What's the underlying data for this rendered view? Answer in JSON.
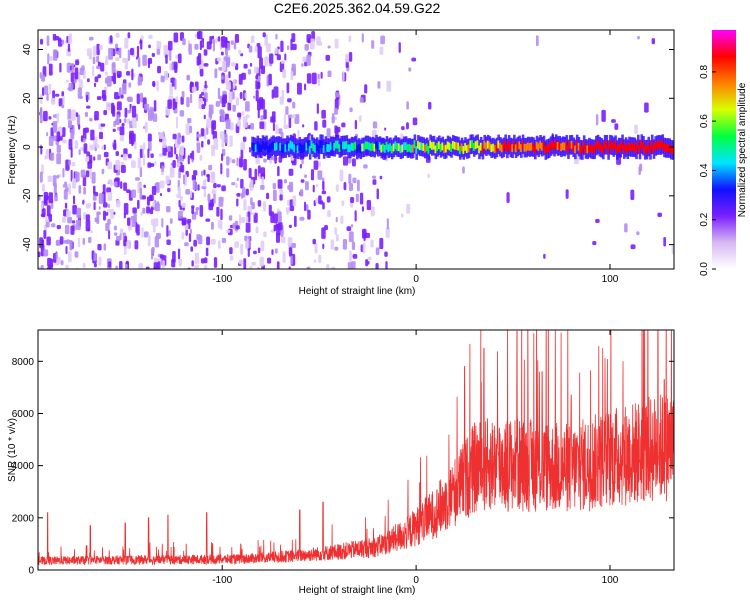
{
  "chart_data": [
    {
      "type": "heatmap",
      "title": "C2E6.2025.362.04.59.G22",
      "xlabel": "Height of straight line (km)",
      "ylabel": "Frequency (Hz)",
      "xlim": [
        -195,
        133
      ],
      "ylim": [
        -50,
        48
      ],
      "xticks": [
        -100,
        0,
        100
      ],
      "yticks": [
        -40,
        -20,
        0,
        20,
        40
      ],
      "colorbar": {
        "label": "Normalized spectral amplitude",
        "range": [
          0,
          0.97
        ],
        "ticks": [
          0.0,
          0.2,
          0.4,
          0.6,
          0.8
        ],
        "colors": [
          "#ffffff",
          "#d7b8f2",
          "#7a1fff",
          "#1010ff",
          "#00e5ff",
          "#00ff40",
          "#d8ff00",
          "#ff8000",
          "#ff0000",
          "#ff00ff"
        ]
      },
      "signal_band": {
        "x_start": -85,
        "x_end": 133,
        "center_freq_hz": 0,
        "peak_amplitude": 0.92
      }
    },
    {
      "type": "line",
      "title": "",
      "xlabel": "Height of straight line (km)",
      "ylabel": "SNR (10 * v/v)",
      "xlim": [
        -195,
        133
      ],
      "ylim": [
        0,
        9200
      ],
      "xticks": [
        -100,
        0,
        100
      ],
      "yticks": [
        0,
        2000,
        4000,
        6000,
        8000
      ],
      "color": "#ee3030",
      "trend": {
        "x": [
          -195,
          -160,
          -120,
          -90,
          -60,
          -40,
          -20,
          -5,
          10,
          20,
          30,
          40,
          60,
          80,
          100,
          120,
          133
        ],
        "y": [
          350,
          380,
          400,
          420,
          550,
          700,
          900,
          1400,
          2200,
          3000,
          3900,
          4100,
          4000,
          3900,
          4300,
          4600,
          4800
        ]
      },
      "spikes": [
        {
          "x": -190,
          "y": 2200
        },
        {
          "x": -168,
          "y": 1700
        },
        {
          "x": -150,
          "y": 1800
        },
        {
          "x": -138,
          "y": 2000
        },
        {
          "x": -128,
          "y": 2100
        },
        {
          "x": -108,
          "y": 2200
        },
        {
          "x": -60,
          "y": 2300
        },
        {
          "x": -48,
          "y": 2600
        },
        {
          "x": 25,
          "y": 7800
        },
        {
          "x": 35,
          "y": 8500
        },
        {
          "x": 52,
          "y": 9150
        },
        {
          "x": 65,
          "y": 7600
        },
        {
          "x": 80,
          "y": 6700
        },
        {
          "x": 128,
          "y": 7300
        }
      ]
    }
  ]
}
